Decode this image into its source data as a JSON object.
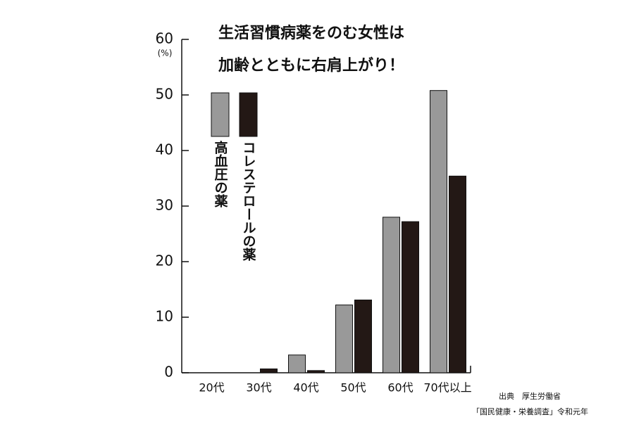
{
  "chart_data": {
    "type": "bar",
    "title": [
      "生活習慣病薬をのむ女性は",
      "加齢とともに右肩上がり！"
    ],
    "y_unit": "(%)",
    "categories": [
      "20代",
      "30代",
      "40代",
      "50代",
      "60代",
      "70代以上"
    ],
    "series": [
      {
        "name": "高血圧の薬",
        "color": "#999999",
        "values": [
          0,
          0,
          3.2,
          12.2,
          28,
          50.8
        ]
      },
      {
        "name": "コレステロールの薬",
        "color": "#231815",
        "values": [
          0,
          0.7,
          0.4,
          13.1,
          27.2,
          35.4
        ]
      }
    ],
    "ylim": [
      0,
      60
    ],
    "yticks": [
      0,
      10,
      20,
      30,
      40,
      50,
      60
    ],
    "grid": false,
    "source": [
      "出典　厚生労働省",
      "「国民健康・栄養調査」令和元年"
    ]
  }
}
